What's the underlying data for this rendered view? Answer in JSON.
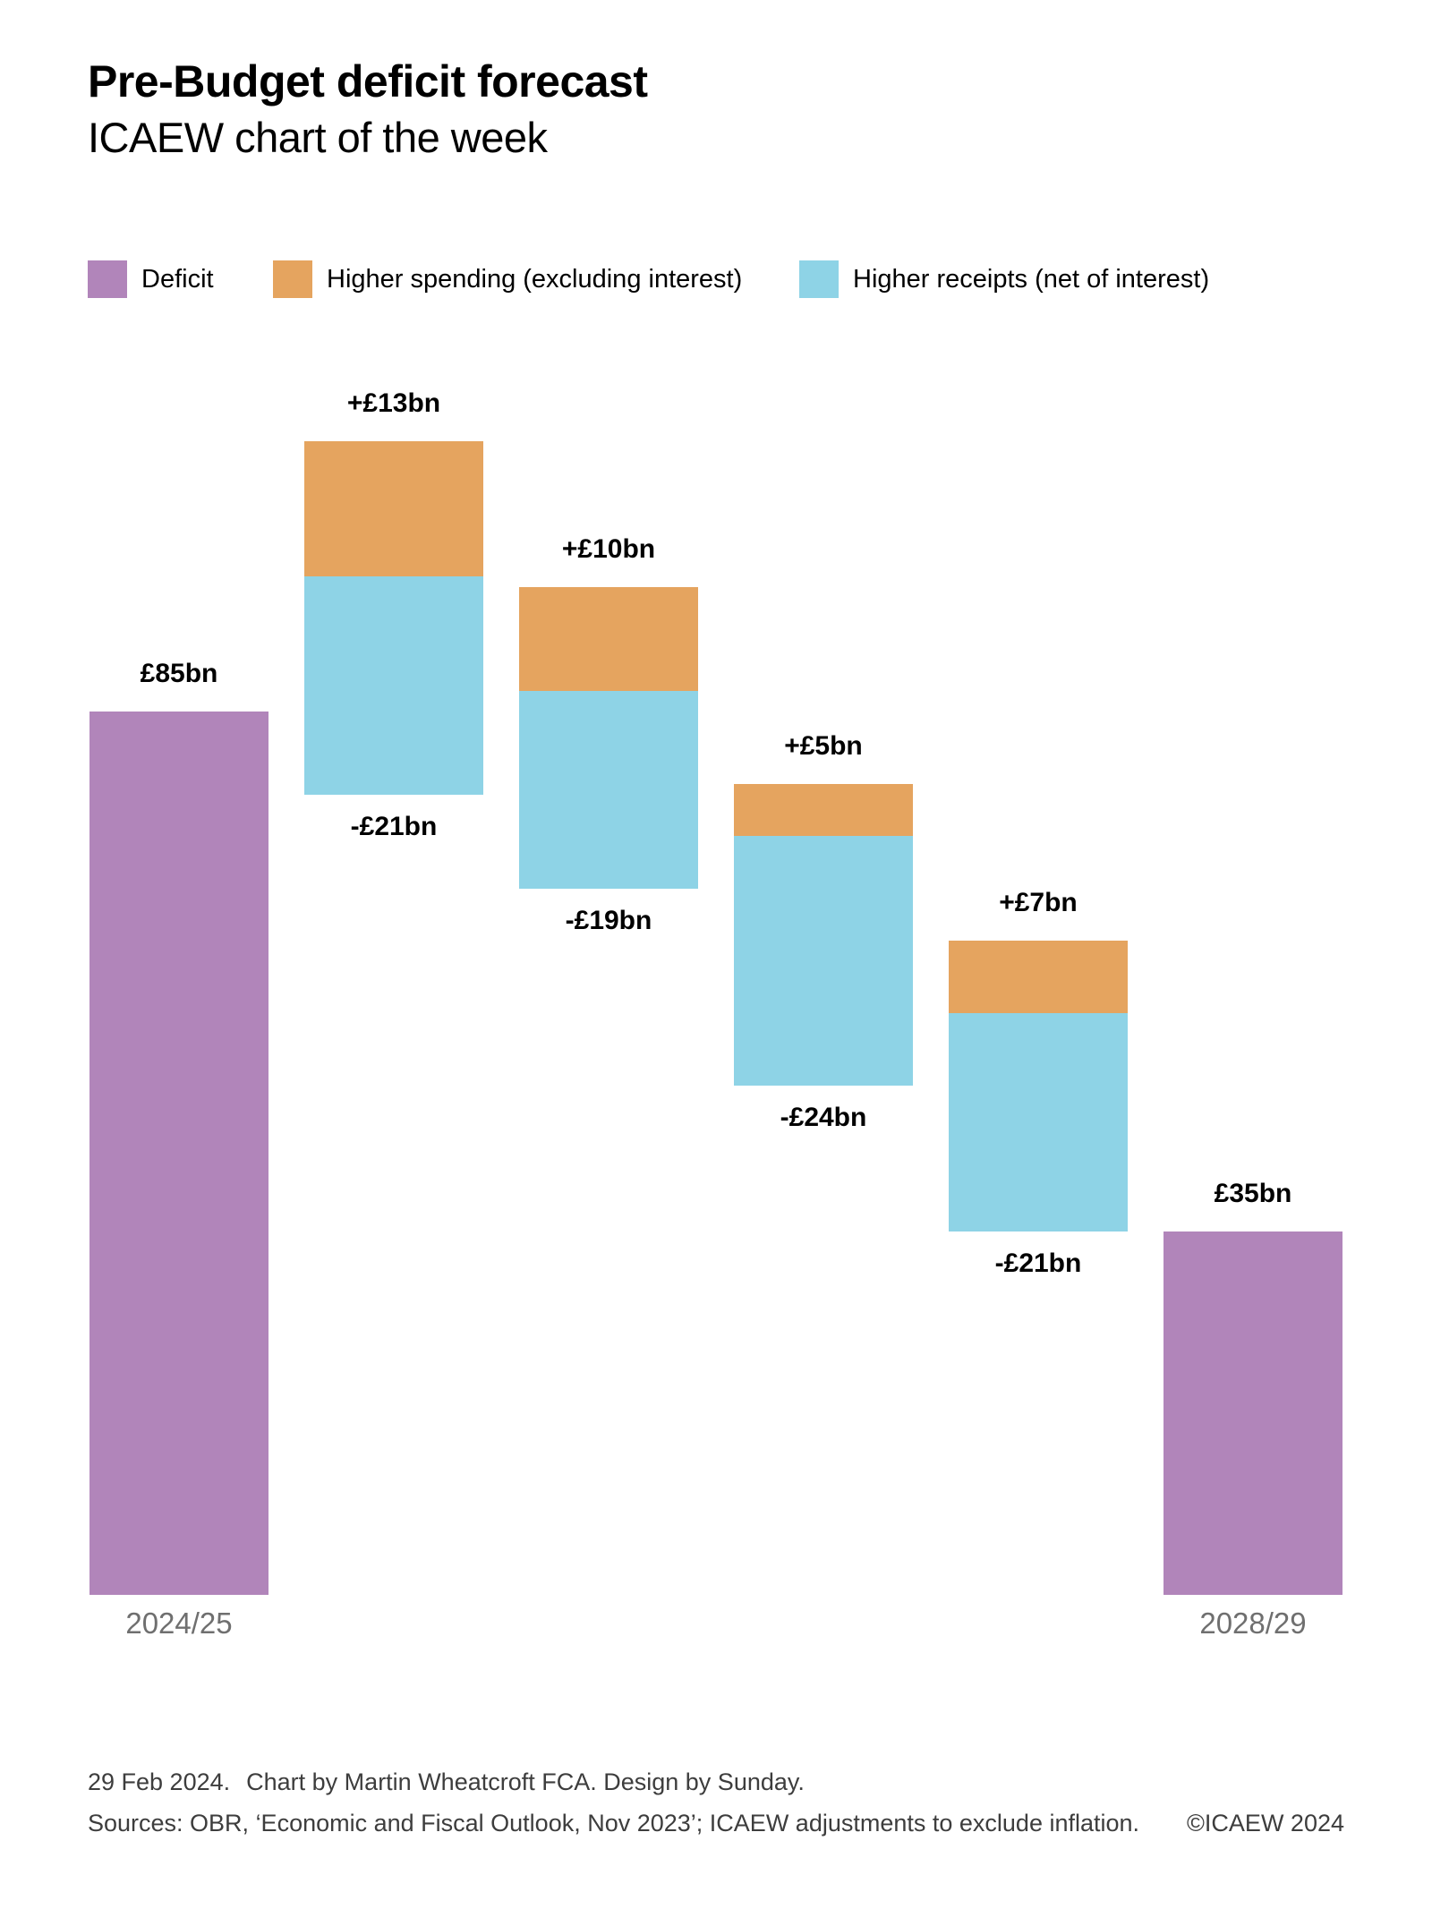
{
  "header": {
    "title": "Pre-Budget deficit forecast",
    "subtitle": "ICAEW chart of the week"
  },
  "colors": {
    "deficit": "#b185ba",
    "spending": "#e5a45f",
    "receipts": "#8ed3e6",
    "axis_label": "#6f6f6f",
    "footer_text": "#3d3d3d"
  },
  "legend": {
    "position": "top",
    "items": [
      {
        "key": "deficit",
        "label": "Deficit"
      },
      {
        "key": "spending",
        "label": "Higher spending (excluding interest)"
      },
      {
        "key": "receipts",
        "label": "Higher receipts (net of interest)"
      }
    ]
  },
  "chart_data": {
    "type": "waterfall",
    "unit": "GBP billions",
    "gridlines": false,
    "y_axis_visible": false,
    "implied_value_range": [
      0,
      112
    ],
    "bars": [
      {
        "kind": "total",
        "value": 85,
        "value_label": "£85bn",
        "axis_label": "2024/25",
        "color": "deficit"
      },
      {
        "kind": "change",
        "increase": 13,
        "decrease": 21,
        "increase_label": "+£13bn",
        "decrease_label": "-£21bn"
      },
      {
        "kind": "change",
        "increase": 10,
        "decrease": 19,
        "increase_label": "+£10bn",
        "decrease_label": "-£19bn"
      },
      {
        "kind": "change",
        "increase": 5,
        "decrease": 24,
        "increase_label": "+£5bn",
        "decrease_label": "-£24bn"
      },
      {
        "kind": "change",
        "increase": 7,
        "decrease": 21,
        "increase_label": "+£7bn",
        "decrease_label": "-£21bn"
      },
      {
        "kind": "total",
        "value": 35,
        "value_label": "£35bn",
        "axis_label": "2028/29",
        "color": "deficit"
      }
    ]
  },
  "footer": {
    "date": "29 Feb 2024.",
    "credit": "Chart by Martin Wheatcroft FCA. Design by Sunday.",
    "sources": "Sources: OBR, ‘Economic and Fiscal Outlook, Nov 2023’; ICAEW adjustments to exclude inflation.",
    "copyright": "©ICAEW 2024"
  }
}
